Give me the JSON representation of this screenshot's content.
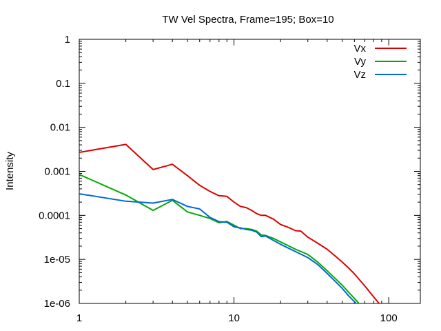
{
  "chart_data": {
    "type": "line",
    "title": "TW Vel Spectra, Frame=195; Box=10",
    "xlabel": "",
    "ylabel": "Intensity",
    "x_scale": "log",
    "y_scale": "log",
    "xlim": [
      1,
      160
    ],
    "ylim": [
      1e-06,
      1
    ],
    "x_ticks": [
      {
        "value": 1,
        "label": "1"
      },
      {
        "value": 10,
        "label": "10"
      },
      {
        "value": 100,
        "label": "100"
      }
    ],
    "y_ticks": [
      {
        "value": 1,
        "label": "1"
      },
      {
        "value": 0.1,
        "label": "0.1"
      },
      {
        "value": 0.01,
        "label": "0.01"
      },
      {
        "value": 0.001,
        "label": "0.001"
      },
      {
        "value": 0.0001,
        "label": "0.0001"
      },
      {
        "value": 1e-05,
        "label": "1e-05"
      },
      {
        "value": 1e-06,
        "label": "1e-06"
      }
    ],
    "grid": false,
    "legend_position": "top-right",
    "series": [
      {
        "name": "Vx",
        "color": "#dd0000",
        "x": [
          1,
          2,
          3,
          4,
          5,
          6,
          7,
          8,
          9,
          10,
          11,
          12,
          13,
          14,
          15,
          16,
          18,
          20,
          22,
          25,
          27,
          30,
          35,
          40,
          45,
          50,
          55,
          60,
          70,
          80,
          90,
          95
        ],
        "y": [
          0.0027,
          0.0041,
          0.0011,
          0.00145,
          0.0008,
          0.00048,
          0.00035,
          0.00028,
          0.00027,
          0.0002,
          0.00016,
          0.00015,
          0.00013,
          0.00011,
          0.0001,
          0.0001,
          8.2e-05,
          6.2e-05,
          5.5e-05,
          4.5e-05,
          4.4e-05,
          3.2e-05,
          2.3e-05,
          1.7e-05,
          1.2e-05,
          8.7e-06,
          6.4e-06,
          4.7e-06,
          2.5e-06,
          1.4e-06,
          8.5e-07,
          6.8e-07
        ]
      },
      {
        "name": "Vy",
        "color": "#00aa00",
        "x": [
          1,
          2,
          3,
          4,
          5,
          6,
          7,
          8,
          9,
          10,
          11,
          12,
          13,
          14,
          15,
          16,
          18,
          20,
          25,
          30,
          35,
          40,
          45,
          50,
          55,
          60,
          65,
          70
        ],
        "y": [
          0.00085,
          0.00029,
          0.00013,
          0.00022,
          0.00012,
          0.0001,
          8.5e-05,
          6.8e-05,
          7.3e-05,
          6e-05,
          5e-05,
          5e-05,
          4.8e-05,
          4.4e-05,
          3.6e-05,
          3.5e-05,
          3e-05,
          2.5e-05,
          1.7e-05,
          1.3e-05,
          8.5e-06,
          5.5e-06,
          3.7e-06,
          2.6e-06,
          1.8e-06,
          1.3e-06,
          9.5e-07,
          7.2e-07
        ]
      },
      {
        "name": "Vz",
        "color": "#0066dd",
        "x": [
          1,
          2,
          3,
          4,
          5,
          6,
          7,
          8,
          9,
          10,
          11,
          12,
          13,
          14,
          15,
          16,
          18,
          20,
          25,
          30,
          35,
          40,
          45,
          50,
          55,
          60,
          65,
          70
        ],
        "y": [
          0.00031,
          0.00021,
          0.00019,
          0.00023,
          0.00016,
          0.00014,
          9e-05,
          7.2e-05,
          7e-05,
          5.5e-05,
          5.2e-05,
          4.8e-05,
          4.6e-05,
          4.2e-05,
          3.3e-05,
          3.4e-05,
          2.7e-05,
          2.2e-05,
          1.5e-05,
          1.1e-05,
          7.5e-06,
          4.8e-06,
          3.2e-06,
          2.2e-06,
          1.5e-06,
          1.1e-06,
          8.2e-07,
          6e-07
        ]
      }
    ]
  }
}
